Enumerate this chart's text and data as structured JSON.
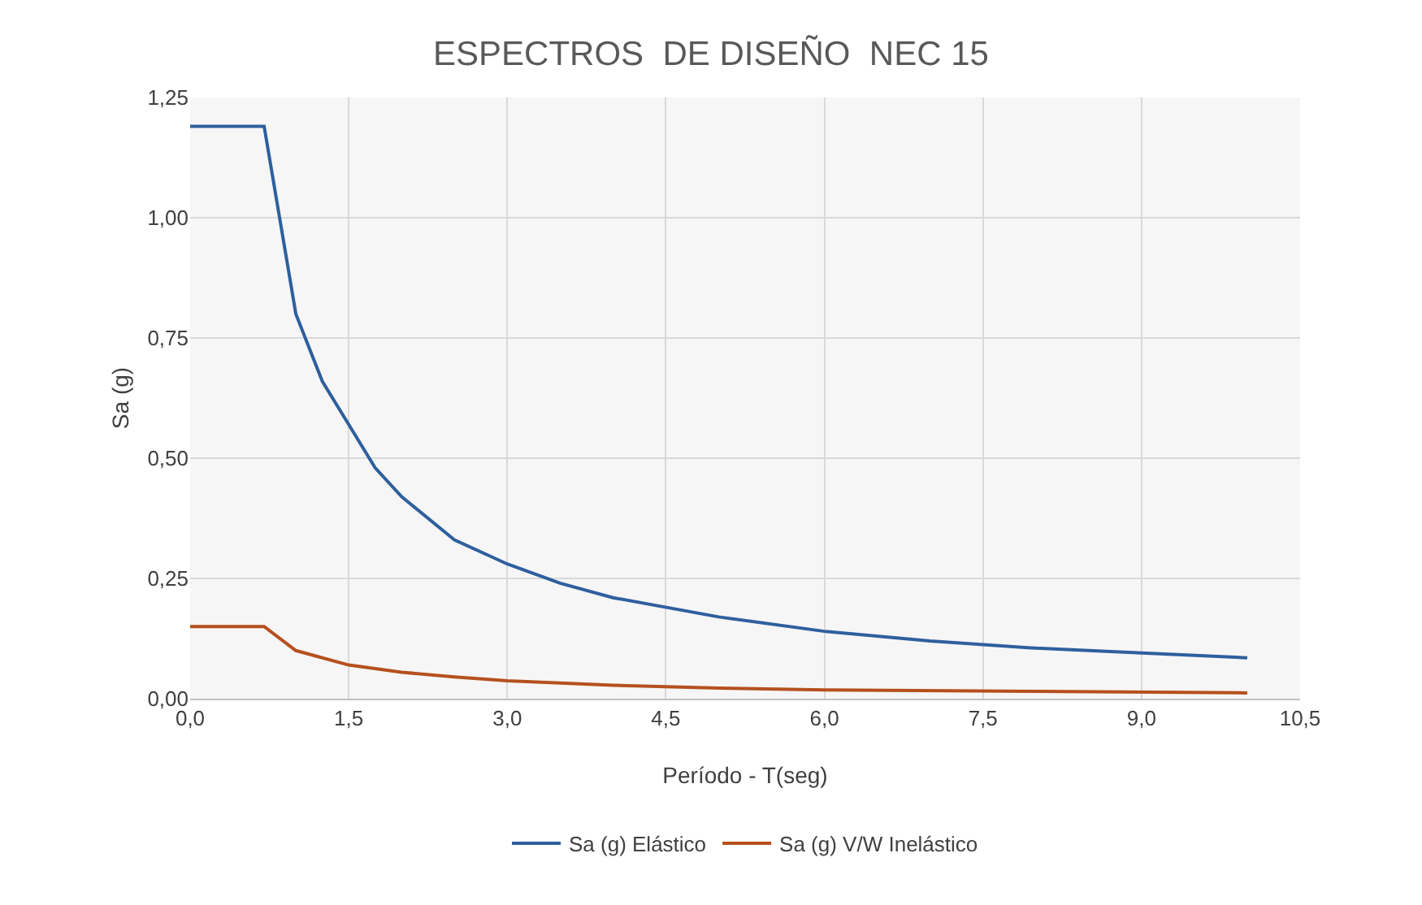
{
  "chart_data": {
    "type": "line",
    "title": "ESPECTROS  DE DISEÑO  NEC 15",
    "xlabel": "Período - T(seg)",
    "ylabel": "Sa (g)",
    "xlim": [
      0,
      10.5
    ],
    "xticks": [
      {
        "value": 0,
        "label": "0,0"
      },
      {
        "value": 1.5,
        "label": "1,5"
      },
      {
        "value": 3,
        "label": "3,0"
      },
      {
        "value": 4.5,
        "label": "4,5"
      },
      {
        "value": 6,
        "label": "6,0"
      },
      {
        "value": 7.5,
        "label": "7,5"
      },
      {
        "value": 9,
        "label": "9,0"
      },
      {
        "value": 10.5,
        "label": "10,5"
      }
    ],
    "ylim": [
      0,
      1.25
    ],
    "yticks": [
      {
        "value": 0,
        "label": "0,00"
      },
      {
        "value": 0.25,
        "label": "0,25"
      },
      {
        "value": 0.5,
        "label": "0,50"
      },
      {
        "value": 0.75,
        "label": "0,75"
      },
      {
        "value": 1,
        "label": "1,00"
      },
      {
        "value": 1.25,
        "label": "1,25"
      }
    ],
    "grid": true,
    "legend": "bottom",
    "marker": "none",
    "line_style": "solid",
    "series": [
      {
        "name": "Sa (g) Elástico",
        "color": "#2e5f9e",
        "x": [
          0,
          0.7,
          1.0,
          1.25,
          1.5,
          1.75,
          2.0,
          2.5,
          3.0,
          3.5,
          4.0,
          5.0,
          6.0,
          7.0,
          8.0,
          9.0,
          10.0
        ],
        "values": [
          1.19,
          1.19,
          0.8,
          0.66,
          0.57,
          0.48,
          0.42,
          0.33,
          0.28,
          0.24,
          0.21,
          0.17,
          0.14,
          0.12,
          0.105,
          0.095,
          0.085
        ]
      },
      {
        "name": "Sa (g) V/W Inelástico",
        "color": "#b5501e",
        "x": [
          0,
          0.7,
          1.0,
          1.5,
          2.0,
          2.5,
          3.0,
          4.0,
          5.0,
          6.0,
          8.0,
          10.0
        ],
        "values": [
          0.15,
          0.15,
          0.1,
          0.07,
          0.055,
          0.045,
          0.037,
          0.028,
          0.022,
          0.018,
          0.015,
          0.012
        ]
      }
    ]
  }
}
